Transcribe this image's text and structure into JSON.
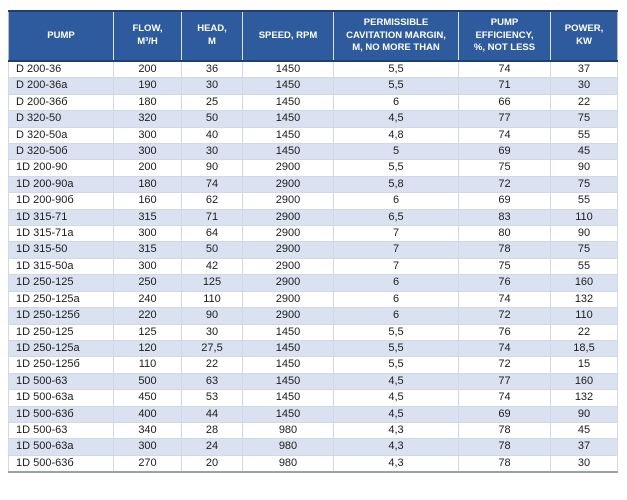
{
  "chart_data": {
    "type": "table",
    "columns": [
      "PUMP",
      "FLOW,\nM³/H",
      "HEAD,\nM",
      "SPEED, RPM",
      "PERMISSIBLE\nCAVITATION MARGIN,\nM, NO MORE THAN",
      "PUMP\nEFFICIENCY,\n%, NOT LESS",
      "POWER,\nKW"
    ],
    "rows": [
      [
        "D 200-36",
        "200",
        "36",
        "1450",
        "5,5",
        "74",
        "37"
      ],
      [
        "D 200-36a",
        "190",
        "30",
        "1450",
        "5,5",
        "71",
        "30"
      ],
      [
        "D 200-36б",
        "180",
        "25",
        "1450",
        "6",
        "66",
        "22"
      ],
      [
        "D 320-50",
        "320",
        "50",
        "1450",
        "4,5",
        "77",
        "75"
      ],
      [
        "D 320-50a",
        "300",
        "40",
        "1450",
        "4,8",
        "74",
        "55"
      ],
      [
        "D 320-50б",
        "300",
        "30",
        "1450",
        "5",
        "69",
        "45"
      ],
      [
        "1D 200-90",
        "200",
        "90",
        "2900",
        "5,5",
        "75",
        "90"
      ],
      [
        "1D 200-90a",
        "180",
        "74",
        "2900",
        "5,8",
        "72",
        "75"
      ],
      [
        "1D 200-90б",
        "160",
        "62",
        "2900",
        "6",
        "69",
        "55"
      ],
      [
        "1D 315-71",
        "315",
        "71",
        "2900",
        "6,5",
        "83",
        "110"
      ],
      [
        "1D 315-71a",
        "300",
        "64",
        "2900",
        "7",
        "80",
        "90"
      ],
      [
        "1D 315-50",
        "315",
        "50",
        "2900",
        "7",
        "78",
        "75"
      ],
      [
        "1D 315-50a",
        "300",
        "42",
        "2900",
        "7",
        "75",
        "55"
      ],
      [
        "1D 250-125",
        "250",
        "125",
        "2900",
        "6",
        "76",
        "160"
      ],
      [
        "1D 250-125a",
        "240",
        "110",
        "2900",
        "6",
        "74",
        "132"
      ],
      [
        "1D 250-125б",
        "220",
        "90",
        "2900",
        "6",
        "72",
        "110"
      ],
      [
        "1D 250-125",
        "125",
        "30",
        "1450",
        "5,5",
        "76",
        "22"
      ],
      [
        "1D 250-125a",
        "120",
        "27,5",
        "1450",
        "5,5",
        "74",
        "18,5"
      ],
      [
        "1D 250-125б",
        "110",
        "22",
        "1450",
        "5,5",
        "72",
        "15"
      ],
      [
        "1D 500-63",
        "500",
        "63",
        "1450",
        "4,5",
        "77",
        "160"
      ],
      [
        "1D 500-63a",
        "450",
        "53",
        "1450",
        "4,5",
        "74",
        "132"
      ],
      [
        "1D 500-63б",
        "400",
        "44",
        "1450",
        "4,5",
        "69",
        "90"
      ],
      [
        "1D 500-63",
        "340",
        "28",
        "980",
        "4,3",
        "78",
        "45"
      ],
      [
        "1D 500-63a",
        "300",
        "24",
        "980",
        "4,3",
        "78",
        "37"
      ],
      [
        "1D 500-63б",
        "270",
        "20",
        "980",
        "4,3",
        "78",
        "30"
      ]
    ]
  },
  "colors": {
    "header_bg": "#2e5b9e",
    "header_text": "#ffffff",
    "header_border": "#1f3e74",
    "alt_row_bg": "#dae2f1",
    "grid_line": "#d2d8e4",
    "outer_border": "#b6bdc9",
    "body_text": "#1c1c1c"
  }
}
